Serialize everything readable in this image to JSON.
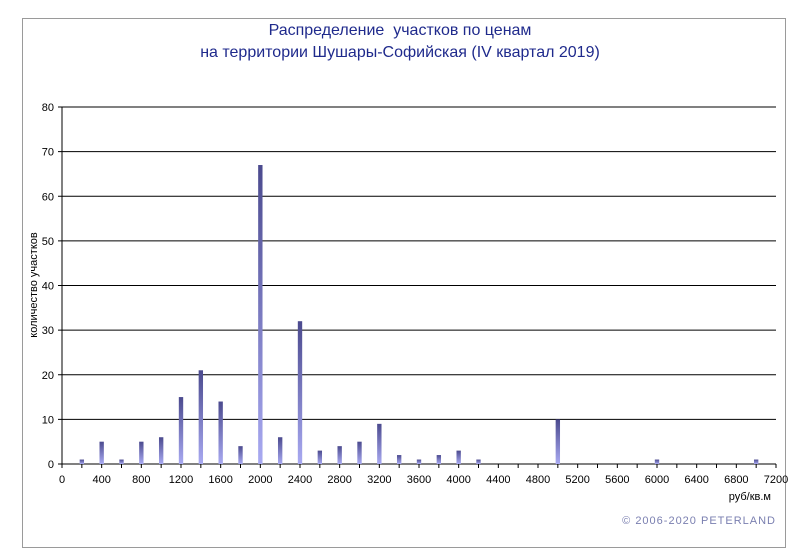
{
  "chart_data": {
    "type": "bar",
    "title_lines": [
      "Распределение  участков по ценам",
      "на территории Шушары-Софийская (IV квартал 2019)"
    ],
    "xlabel": "руб/кв.м",
    "ylabel": "количество участков",
    "ylim": [
      0,
      80
    ],
    "yticks": [
      0,
      10,
      20,
      30,
      40,
      50,
      60,
      70,
      80
    ],
    "xlim": [
      0,
      7200
    ],
    "xticks": [
      0,
      400,
      800,
      1200,
      1600,
      2000,
      2400,
      2800,
      3200,
      3600,
      4000,
      4400,
      4800,
      5200,
      5600,
      6000,
      6400,
      6800,
      7200
    ],
    "grid": true,
    "bar_width": 200,
    "x": [
      200,
      400,
      600,
      800,
      1000,
      1200,
      1400,
      1600,
      1800,
      2000,
      2200,
      2400,
      2600,
      2800,
      3000,
      3200,
      3400,
      3600,
      3800,
      4000,
      4200,
      5000,
      6000,
      7000
    ],
    "values": [
      1,
      5,
      1,
      5,
      6,
      15,
      21,
      14,
      4,
      67,
      6,
      32,
      3,
      4,
      5,
      9,
      2,
      1,
      2,
      3,
      1,
      10,
      1,
      1
    ],
    "colors": {
      "bar_top": "#4b4a8e",
      "bar_bottom": "#a9aaf2",
      "grid": "#000000",
      "title": "#1f2a8c"
    }
  },
  "footer": {
    "copyright": "© 2006-2020  PETERLAND"
  }
}
